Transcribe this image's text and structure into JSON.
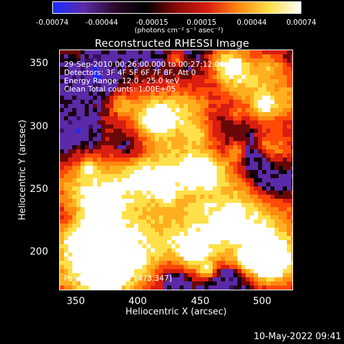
{
  "colorbar": {
    "tick_labels": [
      "-0.00074",
      "-0.00044",
      "-0.00015",
      "0.00015",
      "0.00044",
      "0.00074"
    ],
    "unit_label": "(photons cm⁻² s⁻¹ asec⁻²)"
  },
  "plot": {
    "title": "Reconstructed RHESSI Image",
    "xlabel": "Heliocentric X (arcsec)",
    "ylabel": "Heliocentric Y (arcsec)",
    "x_ticks": [
      "350",
      "400",
      "450",
      "500"
    ],
    "y_ticks": [
      "350",
      "300",
      "250",
      "200"
    ],
    "info_lines": [
      "29-Sep-2010 00:26:00.000 to 00:27:12.000",
      "Detectors: 3F 4F 5F 6F 7F 8F, Att 0",
      "Energy Range: 12.0 - 25.0 keV",
      "Clean     Total counts: 1.00E+05"
    ],
    "peak_label": "Position of Peak = [473,347]"
  },
  "footer": {
    "date": "10-May-2022 09:41"
  },
  "colors": {
    "blue": "#1a2cff",
    "purple": "#5a2aa8",
    "red": "#d81e10",
    "orange": "#ff8a10",
    "yellow": "#ffe04a",
    "white": "#ffffff"
  }
}
